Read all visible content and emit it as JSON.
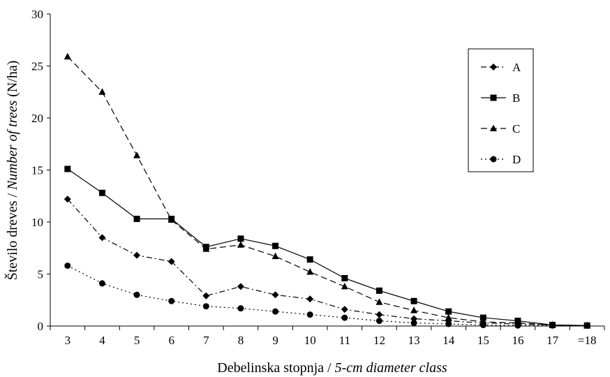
{
  "chart_data": {
    "type": "line",
    "title": "",
    "xlabel_main": "Debelinska stopnja / ",
    "xlabel_italic": "5-cm diameter class",
    "ylabel_main": "Število dreves / ",
    "ylabel_italic": "Number of trees",
    "ylabel_unit": " (N/ha)",
    "ylim": [
      0,
      30
    ],
    "yticks": [
      0,
      5,
      10,
      15,
      20,
      25,
      30
    ],
    "categories": [
      "3",
      "4",
      "5",
      "6",
      "7",
      "8",
      "9",
      "10",
      "11",
      "12",
      "13",
      "14",
      "15",
      "16",
      "17",
      "=18"
    ],
    "legend_position": "top-right",
    "series": [
      {
        "name": "A",
        "marker": "diamond",
        "dash": "dashdot",
        "values": [
          12.2,
          8.5,
          6.8,
          6.2,
          2.9,
          3.8,
          3.0,
          2.6,
          1.6,
          1.1,
          0.7,
          0.5,
          0.3,
          0.2,
          0.1,
          0.05
        ]
      },
      {
        "name": "B",
        "marker": "square",
        "dash": "solid",
        "values": [
          15.1,
          12.8,
          10.3,
          10.3,
          7.6,
          8.4,
          7.7,
          6.4,
          4.6,
          3.4,
          2.4,
          1.4,
          0.8,
          0.5,
          0.1,
          0.05
        ]
      },
      {
        "name": "C",
        "marker": "triangle",
        "dash": "dashed",
        "values": [
          25.9,
          22.5,
          16.4,
          10.2,
          7.4,
          7.8,
          6.7,
          5.2,
          3.8,
          2.3,
          1.5,
          0.8,
          0.4,
          0.3,
          0.1,
          0.05
        ]
      },
      {
        "name": "D",
        "marker": "circle",
        "dash": "dotted",
        "values": [
          5.8,
          4.1,
          3.0,
          2.4,
          1.9,
          1.7,
          1.4,
          1.1,
          0.8,
          0.5,
          0.3,
          0.2,
          0.1,
          0.05,
          0.05,
          0.05
        ]
      }
    ]
  }
}
